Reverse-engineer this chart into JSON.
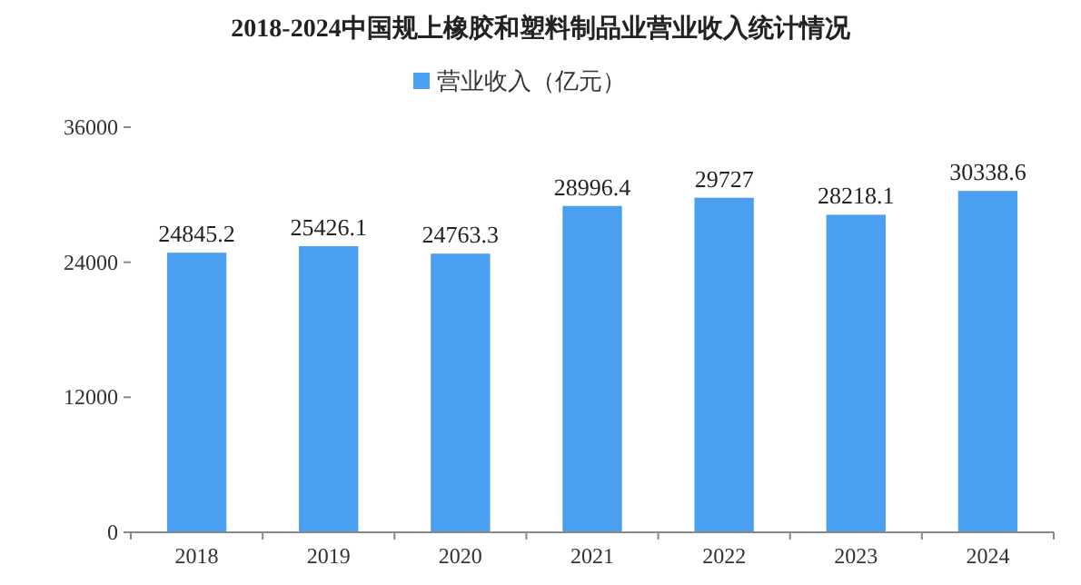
{
  "chart_data": {
    "type": "bar",
    "title": "2018-2024中国规上橡胶和塑料制品业营业收入统计情况",
    "categories": [
      "2018",
      "2019",
      "2020",
      "2021",
      "2022",
      "2023",
      "2024"
    ],
    "series": [
      {
        "name": "营业收入（亿元）",
        "color": "#4a9ff0",
        "values": [
          24845.2,
          25426.1,
          24763.3,
          28996.4,
          29727,
          28218.1,
          30338.6
        ]
      }
    ],
    "ylim": [
      0,
      36000
    ],
    "yticks": [
      0,
      12000,
      24000,
      36000
    ],
    "data_labels": true,
    "legend": "top",
    "grid": false
  }
}
